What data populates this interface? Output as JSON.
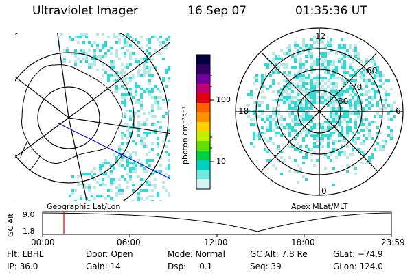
{
  "header": {
    "instrument": "Ultraviolet Imager",
    "date": "16 Sep 07",
    "time": "01:35:36 UT"
  },
  "left_panel": {
    "caption": "Geographic Lat/Lon"
  },
  "right_panel": {
    "caption": "Apex MLat/MLT",
    "mlt_labels": {
      "top": "12",
      "left": "18",
      "right": "6",
      "bottom": "0"
    },
    "lat_labels": [
      "60",
      "70",
      "80"
    ]
  },
  "colorbar": {
    "unit_label": "photon cm⁻²s⁻¹",
    "ticks": [
      "100",
      "10"
    ],
    "colors": [
      "#000040",
      "#300060",
      "#7000a0",
      "#c00070",
      "#e00010",
      "#ff6000",
      "#ff9000",
      "#ffd000",
      "#c0f000",
      "#60e000",
      "#00d040",
      "#00d0c0",
      "#70e8e0",
      "#d0f4f4"
    ]
  },
  "altitude_strip": {
    "ylabel": "GC Alt",
    "yticks": [
      "9.0",
      "1.8"
    ],
    "xticks": [
      "00:00",
      "06:00",
      "12:00",
      "18:00",
      "23:59"
    ],
    "marker_time": "01:35"
  },
  "status": {
    "flt": "Flt: LBHL",
    "door": "Door: Open",
    "mode": "Mode: Normal",
    "gc_alt": "GC Alt: 7.8 Re",
    "glat": "GLat: −74.9",
    "ip": "IP: 36.0",
    "gain": "Gain: 14",
    "dsp": "Dsp:     0.1",
    "seq": "Seq: 39",
    "glon": "GLon: 124.0"
  },
  "colors": {
    "aurora": "#33d9d3",
    "aurora_light": "#b9e9e6",
    "marker": "#e00000",
    "track": "#0000ff"
  }
}
